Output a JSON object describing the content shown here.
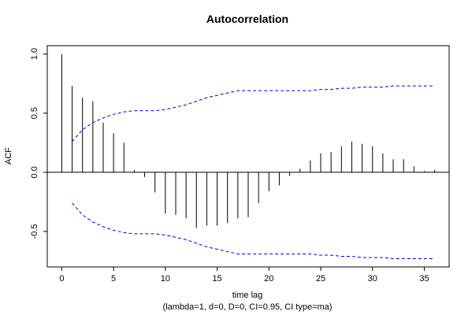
{
  "chart_data": {
    "type": "bar",
    "title": "Autocorrelation",
    "xlabel": "time lag",
    "subtitle": "(lambda=1, d=0, D=0, CI=0.95, CI type=ma)",
    "ylabel": "ACF",
    "xlim": [
      -1.4,
      37.4
    ],
    "ylim": [
      -0.8,
      1.07
    ],
    "x_ticks": [
      "0",
      "5",
      "10",
      "15",
      "20",
      "25",
      "30",
      "35"
    ],
    "y_ticks": [
      "-0.5",
      "0.0",
      "0.5",
      "1.0"
    ],
    "lags": [
      0,
      1,
      2,
      3,
      4,
      5,
      6,
      7,
      8,
      9,
      10,
      11,
      12,
      13,
      14,
      15,
      16,
      17,
      18,
      19,
      20,
      21,
      22,
      23,
      24,
      25,
      26,
      27,
      28,
      29,
      30,
      31,
      32,
      33,
      34,
      35,
      36
    ],
    "acf": [
      1.0,
      0.73,
      0.63,
      0.6,
      0.42,
      0.33,
      0.25,
      0.02,
      -0.04,
      -0.17,
      -0.35,
      -0.36,
      -0.39,
      -0.47,
      -0.45,
      -0.45,
      -0.43,
      -0.39,
      -0.38,
      -0.26,
      -0.16,
      -0.11,
      -0.03,
      0.03,
      0.1,
      0.16,
      0.17,
      0.22,
      0.26,
      0.24,
      0.22,
      0.16,
      0.11,
      0.11,
      0.05,
      0.01,
      0.02
    ],
    "ci_upper": [
      0.26,
      0.36,
      0.42,
      0.46,
      0.49,
      0.51,
      0.52,
      0.52,
      0.52,
      0.53,
      0.55,
      0.57,
      0.6,
      0.63,
      0.65,
      0.67,
      0.69,
      0.69,
      0.69,
      0.69,
      0.69,
      0.69,
      0.69,
      0.69,
      0.7,
      0.7,
      0.71,
      0.71,
      0.72,
      0.72,
      0.72,
      0.73,
      0.73,
      0.73,
      0.73,
      0.73
    ],
    "grid": false,
    "colors": {
      "bars": "#000000",
      "ci": "#0000cc",
      "zero_line": "#000000"
    }
  }
}
